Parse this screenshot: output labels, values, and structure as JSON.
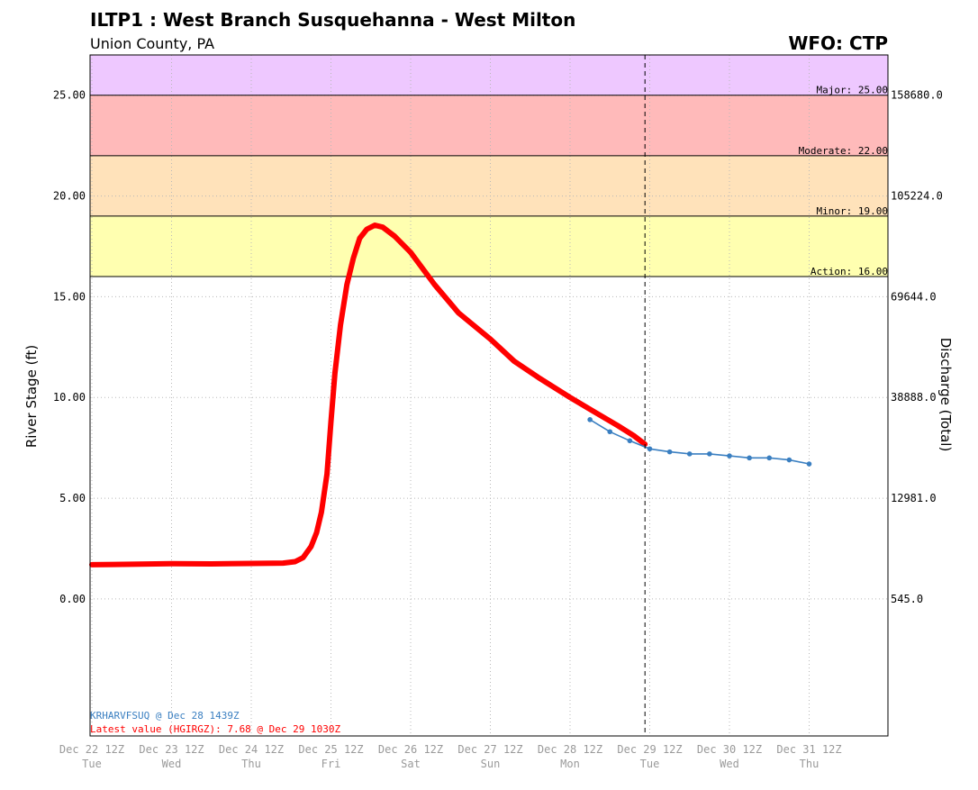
{
  "header": {
    "title": "ILTP1 : West Branch Susquehanna - West Milton",
    "subtitle": "Union County, PA",
    "wfo": "WFO: CTP"
  },
  "chart_data": {
    "type": "line",
    "title": "ILTP1 : West Branch Susquehanna - West Milton",
    "subtitle": "Union County, PA",
    "ylabel": "River Stage (ft)",
    "y2label": "Discharge (Total)",
    "ylim": [
      -6.8,
      27
    ],
    "xlim_days": [
      0,
      9.75
    ],
    "y_ticks": [
      0,
      5,
      10,
      15,
      20,
      25
    ],
    "y_tick_labels": [
      "0.00",
      "5.00",
      "10.00",
      "15.00",
      "20.00",
      "25.00"
    ],
    "y2_ticks": [
      {
        "stage": 0,
        "label": "545.0"
      },
      {
        "stage": 5,
        "label": "12981.0"
      },
      {
        "stage": 10,
        "label": "38888.0"
      },
      {
        "stage": 15,
        "label": "69644.0"
      },
      {
        "stage": 20,
        "label": "105224.0"
      },
      {
        "stage": 25,
        "label": "158680.0"
      }
    ],
    "x_ticks": [
      {
        "day": 0,
        "label": "Dec 22 12Z",
        "weekday": "Tue"
      },
      {
        "day": 1,
        "label": "Dec 23 12Z",
        "weekday": "Wed"
      },
      {
        "day": 2,
        "label": "Dec 24 12Z",
        "weekday": "Thu"
      },
      {
        "day": 3,
        "label": "Dec 25 12Z",
        "weekday": "Fri"
      },
      {
        "day": 4,
        "label": "Dec 26 12Z",
        "weekday": "Sat"
      },
      {
        "day": 5,
        "label": "Dec 27 12Z",
        "weekday": "Sun"
      },
      {
        "day": 6,
        "label": "Dec 28 12Z",
        "weekday": "Mon"
      },
      {
        "day": 7,
        "label": "Dec 29 12Z",
        "weekday": "Tue"
      },
      {
        "day": 8,
        "label": "Dec 30 12Z",
        "weekday": "Wed"
      },
      {
        "day": 9,
        "label": "Dec 31 12Z",
        "weekday": "Thu"
      }
    ],
    "flood_categories": [
      {
        "name": "Major",
        "label": "Major: 25.00",
        "stage": 25.0,
        "color": "#eec8ff"
      },
      {
        "name": "Moderate",
        "label": "Moderate: 22.00",
        "stage": 22.0,
        "color": "#ffbaba"
      },
      {
        "name": "Minor",
        "label": "Minor: 19.00",
        "stage": 19.0,
        "color": "#ffe2ba"
      },
      {
        "name": "Action",
        "label": "Action: 16.00",
        "stage": 16.0,
        "color": "#ffffb0"
      }
    ],
    "now_day": 6.94,
    "series": [
      {
        "name": "observed",
        "color": "#ff0000",
        "points": [
          [
            0,
            1.7
          ],
          [
            0.5,
            1.72
          ],
          [
            1.0,
            1.75
          ],
          [
            1.5,
            1.74
          ],
          [
            2.0,
            1.76
          ],
          [
            2.4,
            1.78
          ],
          [
            2.55,
            1.85
          ],
          [
            2.65,
            2.05
          ],
          [
            2.75,
            2.6
          ],
          [
            2.82,
            3.3
          ],
          [
            2.88,
            4.3
          ],
          [
            2.95,
            6.2
          ],
          [
            3.0,
            8.8
          ],
          [
            3.05,
            11.2
          ],
          [
            3.12,
            13.6
          ],
          [
            3.2,
            15.6
          ],
          [
            3.28,
            16.9
          ],
          [
            3.36,
            17.9
          ],
          [
            3.45,
            18.35
          ],
          [
            3.55,
            18.55
          ],
          [
            3.65,
            18.45
          ],
          [
            3.8,
            18.0
          ],
          [
            4.0,
            17.2
          ],
          [
            4.3,
            15.6
          ],
          [
            4.6,
            14.2
          ],
          [
            5.0,
            12.9
          ],
          [
            5.3,
            11.8
          ],
          [
            5.6,
            11.0
          ],
          [
            6.0,
            10.0
          ],
          [
            6.3,
            9.3
          ],
          [
            6.6,
            8.6
          ],
          [
            6.8,
            8.1
          ],
          [
            6.94,
            7.68
          ]
        ]
      },
      {
        "name": "forecast",
        "color": "#3a7fc1",
        "points": [
          [
            6.25,
            8.9
          ],
          [
            6.5,
            8.3
          ],
          [
            6.75,
            7.85
          ],
          [
            7.0,
            7.45
          ],
          [
            7.25,
            7.3
          ],
          [
            7.5,
            7.2
          ],
          [
            7.75,
            7.2
          ],
          [
            8.0,
            7.1
          ],
          [
            8.25,
            7.0
          ],
          [
            8.5,
            7.0
          ],
          [
            8.75,
            6.9
          ],
          [
            9.0,
            6.7
          ]
        ]
      }
    ],
    "annotations": {
      "forecast_source": "KRHARVFSUQ @ Dec 28 1439Z",
      "latest_value": "Latest value (HGIRGZ): 7.68 @ Dec 29 1030Z"
    }
  }
}
